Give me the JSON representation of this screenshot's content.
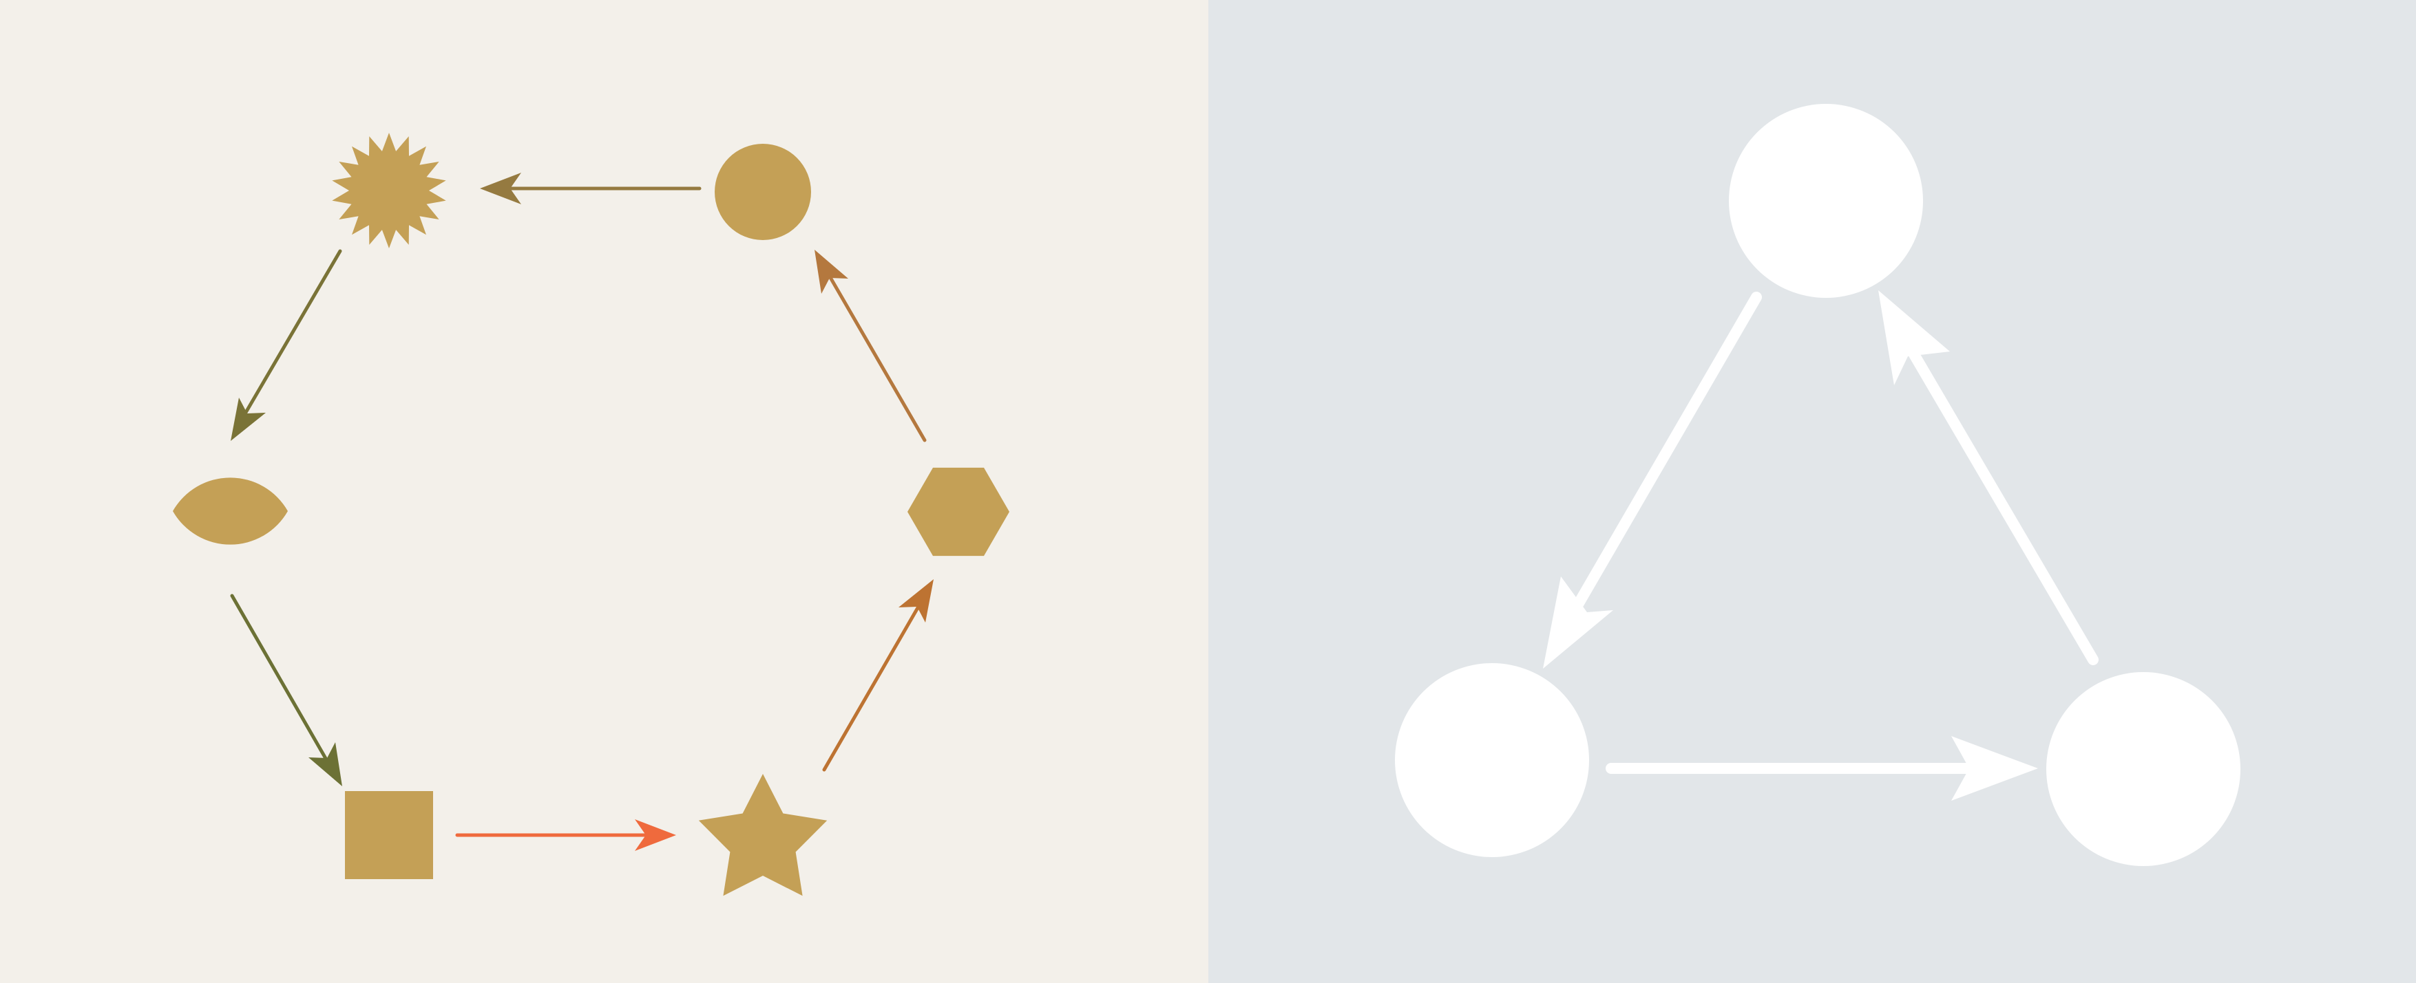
{
  "colors": {
    "left_panel_bg": "#f3f0ea",
    "right_panel_bg": "#e2e6e9",
    "shape_fill": "#c4a056",
    "node_white": "#ffffff",
    "arrow_brown": "#957a40",
    "arrow_olive": "#7a7337",
    "arrow_green": "#6c7135",
    "arrow_orange": "#ef6a3d",
    "arrow_copper": "#bd7332",
    "arrow_rust": "#b4783e"
  },
  "left_cycle": {
    "nodes": [
      {
        "id": "circle",
        "shape": "circle-shape"
      },
      {
        "id": "starburst",
        "shape": "starburst-shape"
      },
      {
        "id": "lens",
        "shape": "lens-shape"
      },
      {
        "id": "square",
        "shape": "square-shape"
      },
      {
        "id": "star",
        "shape": "star-shape"
      },
      {
        "id": "hexagon",
        "shape": "hexagon-shape"
      }
    ],
    "edges": [
      {
        "from": "circle",
        "to": "starburst",
        "color": "arrow_brown"
      },
      {
        "from": "starburst",
        "to": "lens",
        "color": "arrow_olive"
      },
      {
        "from": "lens",
        "to": "square",
        "color": "arrow_green"
      },
      {
        "from": "square",
        "to": "star",
        "color": "arrow_orange"
      },
      {
        "from": "star",
        "to": "hexagon",
        "color": "arrow_copper"
      },
      {
        "from": "hexagon",
        "to": "circle",
        "color": "arrow_rust"
      }
    ]
  },
  "right_cycle": {
    "nodes": [
      {
        "id": "top",
        "shape": "white-circle"
      },
      {
        "id": "bottom-left",
        "shape": "white-circle"
      },
      {
        "id": "bottom-right",
        "shape": "white-circle"
      }
    ],
    "edges": [
      {
        "from": "top",
        "to": "bottom-left"
      },
      {
        "from": "bottom-left",
        "to": "bottom-right"
      },
      {
        "from": "bottom-right",
        "to": "top"
      }
    ]
  }
}
